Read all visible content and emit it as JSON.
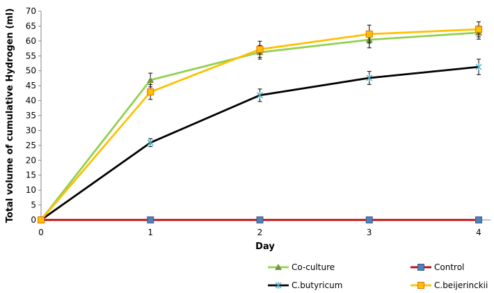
{
  "chart_data": {
    "type": "line",
    "xlabel": "Day",
    "ylabel": "Total volume of cumulative Hydrogen (ml)",
    "x": [
      0,
      1,
      2,
      3,
      4
    ],
    "xlim": [
      0,
      4
    ],
    "ylim": [
      0,
      70
    ],
    "yticks": [
      0,
      5,
      10,
      15,
      20,
      25,
      30,
      35,
      40,
      45,
      50,
      55,
      60,
      65,
      70
    ],
    "xticks": [
      0,
      1,
      2,
      3,
      4
    ],
    "grid": false,
    "legend": "bottom",
    "series": [
      {
        "name": "Co-culture",
        "values": [
          0,
          46.9,
          56.2,
          60.4,
          62.8
        ],
        "errors": [
          0,
          2.3,
          2.3,
          2.7,
          2.2
        ],
        "color": "#92D050",
        "marker": "triangle"
      },
      {
        "name": "Control",
        "values": [
          0,
          0,
          0,
          0,
          0
        ],
        "errors": [
          0,
          0,
          0,
          0,
          0
        ],
        "color": "#C00000",
        "marker": "square",
        "marker_color": "#4F81BD"
      },
      {
        "name": "C.butyricum",
        "values": [
          0,
          25.9,
          41.8,
          47.6,
          51.3
        ],
        "errors": [
          0,
          1.3,
          2.1,
          2.2,
          2.6
        ],
        "color": "#000000",
        "marker": "x",
        "marker_color": "#4BACC6"
      },
      {
        "name": "C.beijerinckii",
        "values": [
          0,
          42.9,
          57.2,
          62.3,
          63.9
        ],
        "errors": [
          0,
          2.5,
          2.7,
          3.0,
          2.5
        ],
        "color": "#FFC000",
        "marker": "square"
      }
    ]
  }
}
